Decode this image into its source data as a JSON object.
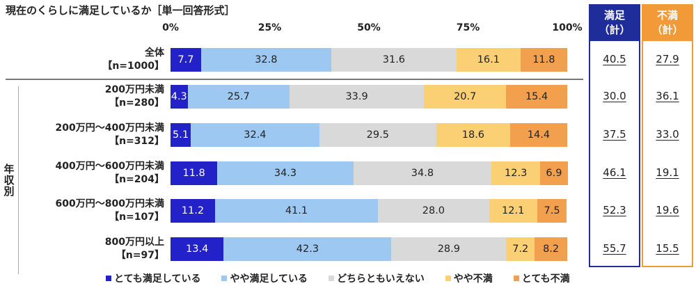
{
  "title": "現在のくらしに満足しているか［単一回答形式］",
  "colors": {
    "very_satisfied": "#2222c8",
    "somewhat_satisfied": "#9cc8f2",
    "neither": "#d9d9d9",
    "somewhat_dissatisfied": "#fbcf73",
    "very_dissatisfied": "#f3a04e",
    "satisfied_total": "#1f2d9a",
    "dissatisfied_total": "#f39a38"
  },
  "summary": {
    "satisfied_header": [
      "満足",
      "（計）"
    ],
    "dissatisfied_header": [
      "不満",
      "（計）"
    ]
  },
  "group_label": "年収別",
  "chart_data": {
    "type": "bar",
    "orientation": "horizontal",
    "stacked": true,
    "percent": true,
    "title": "現在のくらしに満足しているか［単一回答形式］",
    "xlim": [
      0,
      100
    ],
    "ticks": [
      "0%",
      "25%",
      "50%",
      "75%",
      "100%"
    ],
    "categories": [
      [
        "全体",
        "【n=1000】"
      ],
      [
        "200万円未満",
        "【n=280】"
      ],
      [
        "200万円～400万円未満",
        "【n=312】"
      ],
      [
        "400万円～600万円未満",
        "【n=204】"
      ],
      [
        "600万円～800万円未満",
        "【n=107】"
      ],
      [
        "800万円以上",
        "【n=97】"
      ]
    ],
    "series": [
      {
        "name": "とても満足している",
        "values": [
          7.7,
          4.3,
          5.1,
          11.8,
          11.2,
          13.4
        ]
      },
      {
        "name": "やや満足している",
        "values": [
          32.8,
          25.7,
          32.4,
          34.3,
          41.1,
          42.3
        ]
      },
      {
        "name": "どちらともいえない",
        "values": [
          31.6,
          33.9,
          29.5,
          34.8,
          28.0,
          28.9
        ]
      },
      {
        "name": "やや不満",
        "values": [
          16.1,
          20.7,
          18.6,
          12.3,
          12.1,
          7.2
        ]
      },
      {
        "name": "とても不満",
        "values": [
          11.8,
          15.4,
          14.4,
          6.9,
          7.5,
          8.2
        ]
      }
    ],
    "satisfied_total": [
      "40.5",
      "30.0",
      "37.5",
      "46.1",
      "52.3",
      "55.7"
    ],
    "dissatisfied_total": [
      "27.9",
      "36.1",
      "33.0",
      "19.1",
      "19.6",
      "15.5"
    ],
    "legend": "bottom"
  }
}
